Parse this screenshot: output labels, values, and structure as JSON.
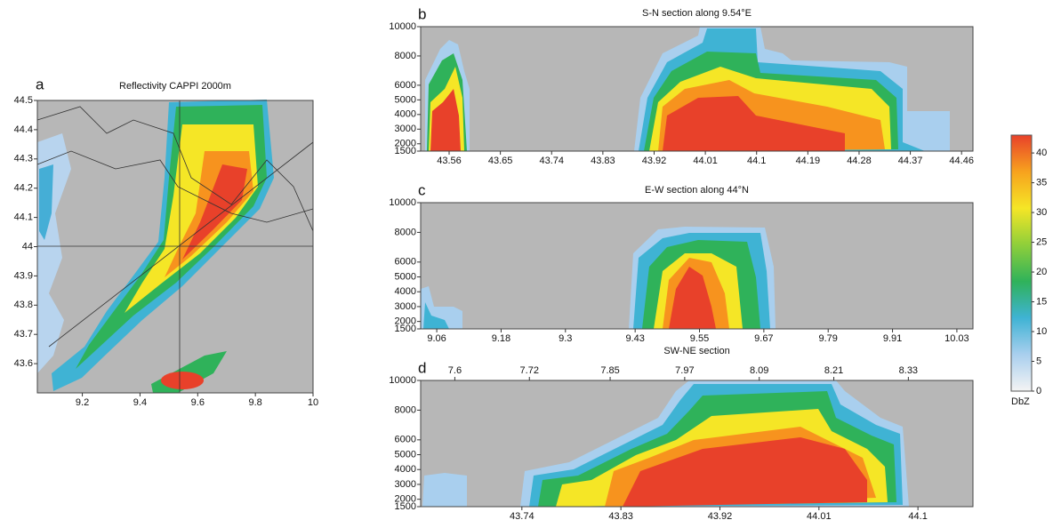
{
  "chart_data": [
    {
      "type": "heatmap",
      "panel_label": "a",
      "title": "Reflectivity CAPPI 2000m",
      "xlim": [
        9.044,
        10.0
      ],
      "xticks": [
        9.2,
        9.4,
        9.6,
        9.8,
        10
      ],
      "ylim": [
        43.5,
        44.5
      ],
      "yticks": [
        43.6,
        43.7,
        43.8,
        43.9,
        44,
        44.1,
        44.2,
        44.3,
        44.4,
        44.5
      ]
    },
    {
      "type": "heatmap",
      "panel_label": "b",
      "title": "S-N section along 9.54°E",
      "xlim": [
        43.51,
        44.48
      ],
      "xticks": [
        43.56,
        43.65,
        43.74,
        43.83,
        43.92,
        44.01,
        44.1,
        44.19,
        44.28,
        44.37,
        44.46
      ],
      "ylim": [
        1500,
        10000
      ],
      "yticks": [
        1500,
        2000,
        3000,
        4000,
        5000,
        6000,
        8000,
        10000
      ]
    },
    {
      "type": "heatmap",
      "panel_label": "c",
      "title": "E-W section along 44°N",
      "xlim": [
        9.03,
        10.06
      ],
      "xticks": [
        9.06,
        9.18,
        9.3,
        9.43,
        9.55,
        9.67,
        9.79,
        9.91,
        10.03
      ],
      "ylim": [
        1500,
        10000
      ],
      "yticks": [
        1500,
        2000,
        3000,
        4000,
        5000,
        6000,
        8000,
        10000
      ]
    },
    {
      "type": "heatmap",
      "panel_label": "d",
      "title": "SW-NE section",
      "xlim": [
        43.648,
        44.15
      ],
      "xticks": [
        43.74,
        43.83,
        43.92,
        44.01,
        44.1
      ],
      "x2lim": [
        7.545,
        8.434
      ],
      "x2ticks": [
        7.6,
        7.72,
        7.85,
        7.97,
        8.09,
        8.21,
        8.33
      ],
      "ylim": [
        1500,
        10000
      ],
      "yticks": [
        1500,
        2000,
        3000,
        4000,
        5000,
        6000,
        8000,
        10000
      ]
    },
    {
      "type": "colorbar",
      "label": "DbZ",
      "ylim": [
        0,
        43
      ],
      "yticks": [
        0,
        5,
        10,
        15,
        20,
        25,
        30,
        35,
        40
      ],
      "colors": [
        "#f4f4f4",
        "#a9cfee",
        "#3fb3d4",
        "#2fb25a",
        "#8fcf3a",
        "#f5e626",
        "#f7a21e",
        "#e8412a"
      ]
    }
  ]
}
